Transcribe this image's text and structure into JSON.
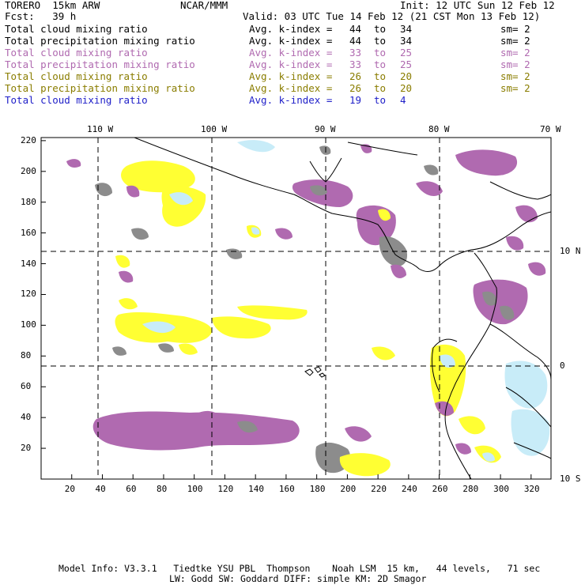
{
  "header": {
    "model": "TORERO  15km ARW",
    "org": "NCAR/MMM",
    "init": "Init: 12 UTC Sun 12 Feb 12",
    "fcst": "Fcst:   39 h",
    "valid": "Valid: 03 UTC Tue 14 Feb 12 (21 CST Mon 13 Feb 12)"
  },
  "legend": [
    {
      "field": "Total cloud mixing ratio",
      "kidx": "Avg. k-index =",
      "a": "44",
      "to": "to",
      "b": "34",
      "sm": "sm= 2",
      "color": "#000000"
    },
    {
      "field": "Total precipitation mixing ratio",
      "kidx": "Avg. k-index =",
      "a": "44",
      "to": "to",
      "b": "34",
      "sm": "sm= 2",
      "color": "#000000"
    },
    {
      "field": "Total cloud mixing ratio",
      "kidx": "Avg. k-index =",
      "a": "33",
      "to": "to",
      "b": "25",
      "sm": "sm= 2",
      "color": "#b06ab0"
    },
    {
      "field": "Total precipitation mixing ratio",
      "kidx": "Avg. k-index =",
      "a": "33",
      "to": "to",
      "b": "25",
      "sm": "sm= 2",
      "color": "#b06ab0"
    },
    {
      "field": "Total cloud mixing ratio",
      "kidx": "Avg. k-index =",
      "a": "26",
      "to": "to",
      "b": "20",
      "sm": "sm= 2",
      "color": "#8a7d00"
    },
    {
      "field": "Total precipitation mixing ratio",
      "kidx": "Avg. k-index =",
      "a": "26",
      "to": "to",
      "b": "20",
      "sm": "sm= 2",
      "color": "#8a7d00"
    },
    {
      "field": "Total cloud mixing ratio",
      "kidx": "Avg. k-index =",
      "a": "19",
      "to": "to",
      "b": "4",
      "sm": "",
      "color": "#1e1ec8"
    }
  ],
  "map": {
    "lon_labels": [
      "110 W",
      "100 W",
      "90 W",
      "80 W",
      "70 W"
    ],
    "lat_labels": [
      "10 N",
      "0",
      "10 S"
    ],
    "x_ticks": [
      "20",
      "40",
      "60",
      "80",
      "100",
      "120",
      "140",
      "160",
      "180",
      "200",
      "220",
      "240",
      "260",
      "280",
      "300",
      "320"
    ],
    "y_ticks": [
      "20",
      "40",
      "60",
      "80",
      "100",
      "120",
      "140",
      "160",
      "180",
      "200",
      "220"
    ],
    "colors": {
      "purple": "#b06ab0",
      "yellow": "#ffff33",
      "gray": "#8c8c8c",
      "lightblue": "#c8ecf8",
      "lightyellow": "#ffffa0"
    }
  },
  "footer": {
    "line1": "Model Info: V3.3.1   Tiedtke YSU PBL  Thompson    Noah LSM  15 km,   44 levels,   71 sec",
    "line2": "LW: Godd SW: Goddard DIFF: simple KM: 2D Smagor"
  }
}
